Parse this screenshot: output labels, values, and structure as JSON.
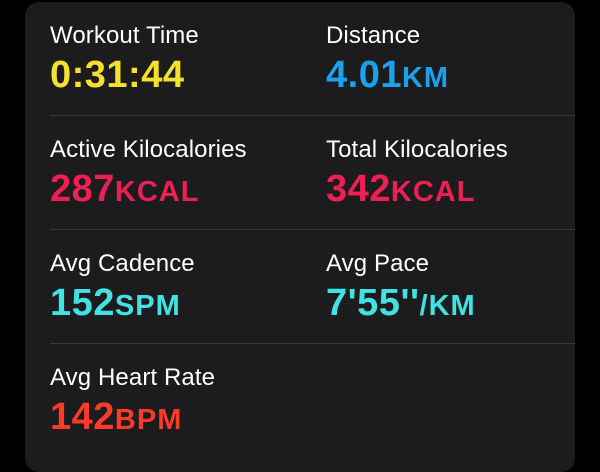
{
  "colors": {
    "yellow": "#f5e12b",
    "blue": "#1aa3ec",
    "pink": "#ee1f55",
    "cyan": "#40e2e2",
    "red": "#fa3b27",
    "card_bg": "#1c1c1e"
  },
  "metrics": {
    "workout_time": {
      "label": "Workout Time",
      "value": "0:31:44",
      "unit": ""
    },
    "distance": {
      "label": "Distance",
      "value": "4.01",
      "unit": "KM"
    },
    "active_kcal": {
      "label": "Active Kilocalories",
      "value": "287",
      "unit": "KCAL"
    },
    "total_kcal": {
      "label": "Total Kilocalories",
      "value": "342",
      "unit": "KCAL"
    },
    "avg_cadence": {
      "label": "Avg Cadence",
      "value": "152",
      "unit": "SPM"
    },
    "avg_pace": {
      "label": "Avg Pace",
      "value": "7'55''",
      "unit": "/KM"
    },
    "avg_heart_rate": {
      "label": "Avg Heart Rate",
      "value": "142",
      "unit": "BPM"
    }
  }
}
